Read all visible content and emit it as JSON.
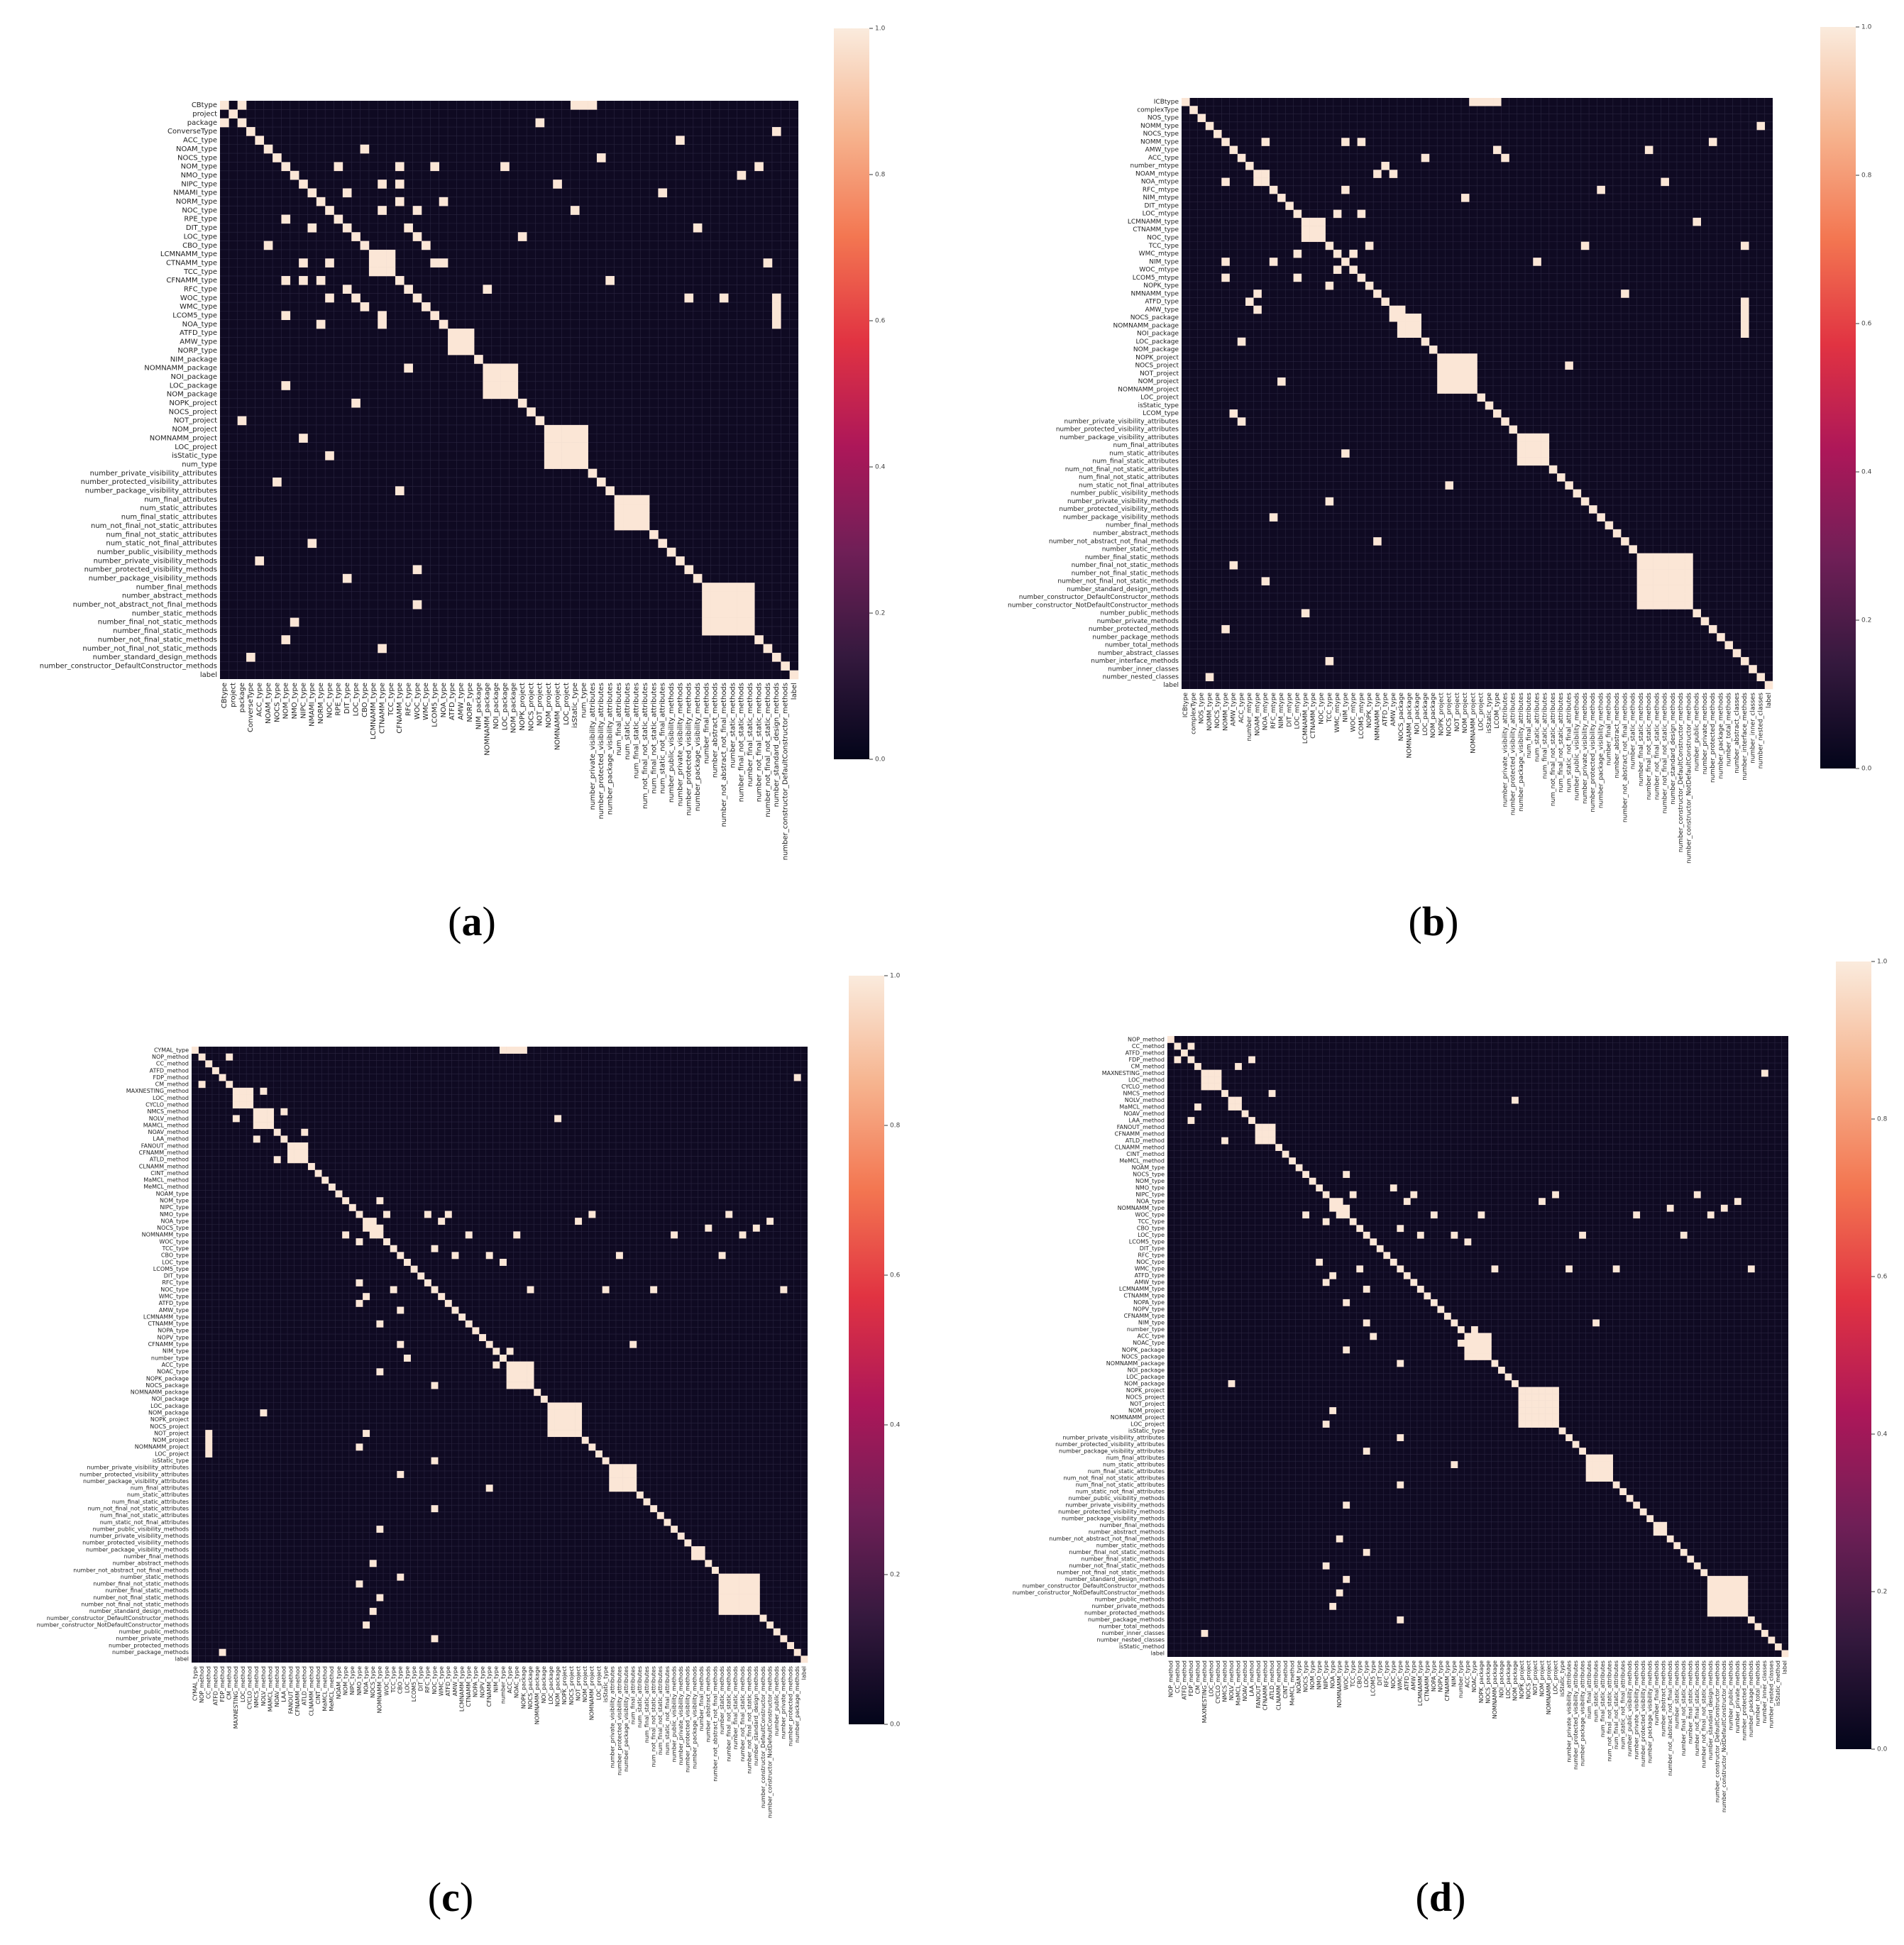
{
  "figure": {
    "colors": {
      "background": "#ffffff",
      "matrix_background": "#0f0a22",
      "cell_border": "#2a2540",
      "high_value": "#fbe6d6"
    }
  },
  "colorbar": {
    "colormap": "rocket",
    "stops": [
      "#03051a",
      "#35193e",
      "#701f57",
      "#ad1759",
      "#e13342",
      "#f37651",
      "#f6b48f",
      "#faebdd"
    ]
  },
  "chart_data": [
    {
      "panel": "a",
      "type": "heatmap",
      "caption_letter": "a",
      "vmin": 0,
      "vmax": 1,
      "colorbar_ticks": [
        "0.0",
        "0.2",
        "0.4",
        "0.6",
        "0.8",
        "1.0"
      ],
      "n_features": 66,
      "features": [
        "CBtype",
        "project",
        "package",
        "ConverseType",
        "ACC_type",
        "NOAM_type",
        "NOCS_type",
        "NOM_type",
        "NMO_type",
        "NIPC_type",
        "NMAMI_type",
        "NORM_type",
        "NOC_type",
        "RPE_type",
        "DIT_type",
        "LOC_type",
        "CBO_type",
        "LCMNAMM_type",
        "CTNAMM_type",
        "TCC_type",
        "CFNAMM_type",
        "RFC_type",
        "WOC_type",
        "WMC_type",
        "LCOM5_type",
        "NOA_type",
        "ATFD_type",
        "AMW_type",
        "NORP_type",
        "NIM_package",
        "NOMNAMM_package",
        "NOI_package",
        "LOC_package",
        "NOM_package",
        "NOPK_project",
        "NOCS_project",
        "NOT_project",
        "NOM_project",
        "NOMNAMM_project",
        "LOC_project",
        "isStatic_type",
        "num_type",
        "number_private_visibility_attributes",
        "number_protected_visibility_attributes",
        "number_package_visibility_attributes",
        "num_final_attributes",
        "num_static_attributes",
        "num_final_static_attributes",
        "num_not_final_not_static_attributes",
        "num_final_not_static_attributes",
        "num_static_not_final_attributes",
        "number_public_visibility_methods",
        "number_private_visibility_methods",
        "number_protected_visibility_methods",
        "number_package_visibility_methods",
        "number_final_methods",
        "number_abstract_methods",
        "number_not_abstract_not_final_methods",
        "number_static_methods",
        "number_final_not_static_methods",
        "number_final_static_methods",
        "number_not_final_static_methods",
        "number_not_final_not_static_methods",
        "number_standard_design_methods",
        "number_constructor_DefaultConstructor_methods",
        "label"
      ],
      "blocks": [
        [
          17,
          19
        ],
        [
          26,
          28
        ],
        [
          30,
          33
        ],
        [
          37,
          41
        ],
        [
          45,
          48
        ],
        [
          55,
          60
        ]
      ],
      "pairs": [
        [
          2,
          0
        ],
        [
          7,
          13
        ],
        [
          7,
          20
        ],
        [
          7,
          24
        ],
        [
          9,
          18
        ],
        [
          10,
          14
        ],
        [
          11,
          20
        ],
        [
          11,
          25
        ],
        [
          12,
          18
        ],
        [
          14,
          21
        ],
        [
          15,
          22
        ],
        [
          16,
          5
        ],
        [
          18,
          24
        ],
        [
          20,
          9
        ],
        [
          21,
          30
        ],
        [
          22,
          12
        ],
        [
          23,
          16
        ],
        [
          25,
          18
        ],
        [
          32,
          7
        ],
        [
          34,
          15
        ],
        [
          36,
          2
        ],
        [
          38,
          9
        ],
        [
          40,
          12
        ],
        [
          43,
          6
        ],
        [
          44,
          20
        ],
        [
          50,
          10
        ],
        [
          52,
          4
        ],
        [
          53,
          22
        ],
        [
          54,
          14
        ],
        [
          57,
          22
        ],
        [
          59,
          8
        ],
        [
          61,
          7
        ],
        [
          62,
          18
        ],
        [
          63,
          3
        ]
      ],
      "row_bands": [
        [
          0,
          40,
          42
        ]
      ],
      "col_bands": [
        [
          63,
          22,
          25
        ]
      ]
    },
    {
      "panel": "b",
      "type": "heatmap",
      "caption_letter": "b",
      "vmin": 0,
      "vmax": 1,
      "colorbar_ticks": [
        "0.0",
        "0.2",
        "0.4",
        "0.6",
        "0.8",
        "1.0"
      ],
      "n_features": 74,
      "features": [
        "ICBtype",
        "complexType",
        "NOS_type",
        "NOMM_type",
        "NOCS_type",
        "NOMM_type",
        "AMW_type",
        "ACC_type",
        "number_mtype",
        "NOAM_mtype",
        "NOA_mtype",
        "RFC_mtype",
        "NIM_mtype",
        "DIT_mtype",
        "LOC_mtype",
        "LCMNAMM_type",
        "CTNAMM_type",
        "NOC_type",
        "TCC_type",
        "WMC_mtype",
        "NIM_type",
        "WOC_mtype",
        "LCOM5_mtype",
        "NOPK_type",
        "NMNAMM_type",
        "ATFD_type",
        "AMW_type",
        "NOCS_package",
        "NOMNAMM_package",
        "NOI_package",
        "LOC_package",
        "NOM_package",
        "NOPK_project",
        "NOCS_project",
        "NOT_project",
        "NOM_project",
        "NOMNAMM_project",
        "LOC_project",
        "isStatic_type",
        "LCOM_type",
        "number_private_visibility_attributes",
        "number_protected_visibility_attributes",
        "number_package_visibility_attributes",
        "num_final_attributes",
        "num_static_attributes",
        "num_final_static_attributes",
        "num_not_final_not_static_attributes",
        "num_final_not_static_attributes",
        "num_static_not_final_attributes",
        "number_public_visibility_methods",
        "number_private_visibility_methods",
        "number_protected_visibility_methods",
        "number_package_visibility_methods",
        "number_final_methods",
        "number_abstract_methods",
        "number_not_abstract_not_final_methods",
        "number_static_methods",
        "number_final_static_methods",
        "number_final_not_static_methods",
        "number_not_final_static_methods",
        "number_not_final_not_static_methods",
        "number_standard_design_methods",
        "number_constructor_DefaultConstructor_methods",
        "number_constructor_NotDefaultConstructor_methods",
        "number_public_methods",
        "number_private_methods",
        "number_protected_methods",
        "number_package_methods",
        "number_total_methods",
        "number_abstract_classes",
        "number_interface_methods",
        "number_inner_classes",
        "number_nested_classes",
        "label"
      ],
      "blocks": [
        [
          15,
          17
        ],
        [
          27,
          29
        ],
        [
          32,
          36
        ],
        [
          42,
          45
        ],
        [
          57,
          63
        ]
      ],
      "pairs": [
        [
          5,
          10
        ],
        [
          5,
          22
        ],
        [
          6,
          39
        ],
        [
          7,
          30
        ],
        [
          9,
          26
        ],
        [
          10,
          9
        ],
        [
          11,
          20
        ],
        [
          12,
          35
        ],
        [
          14,
          19
        ],
        [
          18,
          50
        ],
        [
          19,
          21
        ],
        [
          20,
          5
        ],
        [
          21,
          19
        ],
        [
          22,
          14
        ],
        [
          23,
          18
        ],
        [
          24,
          9
        ],
        [
          25,
          8
        ],
        [
          27,
          26
        ],
        [
          40,
          7
        ],
        [
          44,
          20
        ],
        [
          48,
          33
        ],
        [
          52,
          11
        ],
        [
          55,
          24
        ],
        [
          58,
          6
        ],
        [
          60,
          10
        ],
        [
          64,
          15
        ],
        [
          66,
          5
        ],
        [
          70,
          18
        ],
        [
          72,
          3
        ]
      ],
      "row_bands": [
        [
          0,
          36,
          39
        ]
      ],
      "col_bands": [
        [
          70,
          25,
          29
        ]
      ]
    },
    {
      "panel": "c",
      "type": "heatmap",
      "caption_letter": "c",
      "vmin": 0,
      "vmax": 1,
      "colorbar_ticks": [
        "0.0",
        "0.2",
        "0.4",
        "0.6",
        "0.8",
        "1.0"
      ],
      "n_features": 90,
      "features": [
        "CYMAL_type",
        "NOP_method",
        "CC_method",
        "ATFD_method",
        "FDP_method",
        "CM_method",
        "MAXNESTING_method",
        "LOC_method",
        "CYCLO_method",
        "NMCS_method",
        "NOLV_method",
        "MAMCL_method",
        "NOAV_method",
        "LAA_method",
        "FANOUT_method",
        "CFNAMM_method",
        "ATLD_method",
        "CLNAMM_method",
        "CINT_method",
        "MaMCL_method",
        "MeMCL_method",
        "NOAM_type",
        "NOM_type",
        "NIPC_type",
        "NMO_type",
        "NOA_type",
        "NOCS_type",
        "NOMNAMM_type",
        "WOC_type",
        "TCC_type",
        "CBO_type",
        "LOC_type",
        "LCOM5_type",
        "DIT_type",
        "RFC_type",
        "NOC_type",
        "WMC_type",
        "ATFD_type",
        "AMW_type",
        "LCMNAMM_type",
        "CTNAMM_type",
        "NOPA_type",
        "NOPV_type",
        "CFNAMM_type",
        "NIM_type",
        "number_type",
        "ACC_type",
        "NOAC_type",
        "NOPK_package",
        "NOCS_package",
        "NOMNAMM_package",
        "NOI_package",
        "LOC_package",
        "NOM_package",
        "NOPK_project",
        "NOCS_project",
        "NOT_project",
        "NOM_project",
        "NOMNAMM_project",
        "LOC_project",
        "isStatic_type",
        "number_private_visibility_attributes",
        "number_protected_visibility_attributes",
        "number_package_visibility_attributes",
        "num_final_attributes",
        "num_static_attributes",
        "num_final_static_attributes",
        "num_not_final_not_static_attributes",
        "num_final_not_static_attributes",
        "num_static_not_final_attributes",
        "number_public_visibility_methods",
        "number_private_visibility_methods",
        "number_protected_visibility_methods",
        "number_package_visibility_methods",
        "number_final_methods",
        "number_abstract_methods",
        "number_not_abstract_not_final_methods",
        "number_static_methods",
        "number_final_not_static_methods",
        "number_final_static_methods",
        "number_not_final_static_methods",
        "number_not_final_not_static_methods",
        "number_standard_design_methods",
        "number_constructor_DefaultConstructor_methods",
        "number_constructor_NotDefaultConstructor_methods",
        "number_public_methods",
        "number_private_methods",
        "number_protected_methods",
        "number_package_methods",
        "label"
      ],
      "blocks": [
        [
          6,
          8
        ],
        [
          9,
          11
        ],
        [
          14,
          16
        ],
        [
          46,
          49
        ],
        [
          52,
          56
        ],
        [
          61,
          64
        ],
        [
          77,
          82
        ]
      ],
      "pairs": [
        [
          5,
          1
        ],
        [
          10,
          6
        ],
        [
          12,
          16
        ],
        [
          13,
          9
        ],
        [
          22,
          27
        ],
        [
          24,
          34
        ],
        [
          25,
          26
        ],
        [
          26,
          27
        ],
        [
          28,
          24
        ],
        [
          29,
          35
        ],
        [
          30,
          43
        ],
        [
          31,
          45
        ],
        [
          35,
          49
        ],
        [
          36,
          25
        ],
        [
          37,
          24
        ],
        [
          38,
          30
        ],
        [
          40,
          27
        ],
        [
          44,
          46
        ],
        [
          47,
          27
        ],
        [
          53,
          10
        ],
        [
          56,
          25
        ],
        [
          58,
          24
        ],
        [
          60,
          35
        ],
        [
          62,
          30
        ],
        [
          64,
          43
        ],
        [
          67,
          35
        ],
        [
          70,
          27
        ],
        [
          73,
          74
        ],
        [
          75,
          26
        ],
        [
          77,
          30
        ],
        [
          78,
          24
        ],
        [
          80,
          27
        ],
        [
          82,
          26
        ],
        [
          84,
          25
        ],
        [
          86,
          35
        ],
        [
          88,
          4
        ]
      ],
      "row_bands": [
        [
          0,
          45,
          48
        ]
      ],
      "col_bands": [
        [
          2,
          56,
          59
        ]
      ]
    },
    {
      "panel": "d",
      "type": "heatmap",
      "caption_letter": "d",
      "vmin": 0,
      "vmax": 1,
      "colorbar_ticks": [
        "0.0",
        "0.2",
        "0.4",
        "0.6",
        "0.8",
        "1.0"
      ],
      "n_features": 92,
      "features": [
        "NOP_method",
        "CC_method",
        "ATFD_method",
        "FDP_method",
        "CM_method",
        "MAXNESTING_method",
        "LOC_method",
        "CYCLO_method",
        "NMCS_method",
        "NOLV_method",
        "MaMCL_method",
        "NOAV_method",
        "LAA_method",
        "FANOUT_method",
        "CFNAMM_method",
        "ATLD_method",
        "CLNAMM_method",
        "CINT_method",
        "MeMCL_method",
        "NOAM_type",
        "NOCS_type",
        "NOM_type",
        "NMO_type",
        "NIPC_type",
        "NOA_type",
        "NOMNAMM_type",
        "WOC_type",
        "TCC_type",
        "CBO_type",
        "LOC_type",
        "LCOM5_type",
        "DIT_type",
        "RFC_type",
        "NOC_type",
        "WMC_type",
        "ATFD_type",
        "AMW_type",
        "LCMNAMM_type",
        "CTNAMM_type",
        "NOPA_type",
        "NOPV_type",
        "CFNAMM_type",
        "NIM_type",
        "number_type",
        "ACC_type",
        "NOAC_type",
        "NOPK_package",
        "NOCS_package",
        "NOMNAMM_package",
        "NOI_package",
        "LOC_package",
        "NOM_package",
        "NOPK_project",
        "NOCS_project",
        "NOT_project",
        "NOM_project",
        "NOMNAMM_project",
        "LOC_project",
        "isStatic_type",
        "number_private_visibility_attributes",
        "number_protected_visibility_attributes",
        "number_package_visibility_attributes",
        "num_final_attributes",
        "num_static_attributes",
        "num_final_static_attributes",
        "num_not_final_not_static_attributes",
        "num_final_not_static_attributes",
        "num_static_not_final_attributes",
        "number_public_visibility_methods",
        "number_private_visibility_methods",
        "number_protected_visibility_methods",
        "number_package_visibility_methods",
        "number_final_methods",
        "number_abstract_methods",
        "number_not_abstract_not_final_methods",
        "number_static_methods",
        "number_final_not_static_methods",
        "number_final_static_methods",
        "number_not_final_static_methods",
        "number_not_final_not_static_methods",
        "number_standard_design_methods",
        "number_constructor_DefaultConstructor_methods",
        "number_constructor_NotDefaultConstructor_methods",
        "number_public_methods",
        "number_private_methods",
        "number_protected_methods",
        "number_package_methods",
        "number_total_methods",
        "number_inner_classes",
        "number_nested_classes",
        "isStatic_method",
        "label"
      ],
      "blocks": [
        [
          5,
          7
        ],
        [
          9,
          10
        ],
        [
          13,
          15
        ],
        [
          44,
          47
        ],
        [
          52,
          57
        ],
        [
          62,
          65
        ],
        [
          80,
          85
        ]
      ],
      "pairs": [
        [
          3,
          1
        ],
        [
          4,
          10
        ],
        [
          8,
          15
        ],
        [
          12,
          3
        ],
        [
          20,
          26
        ],
        [
          22,
          33
        ],
        [
          24,
          25
        ],
        [
          25,
          26
        ],
        [
          27,
          23
        ],
        [
          28,
          34
        ],
        [
          29,
          42
        ],
        [
          30,
          44
        ],
        [
          34,
          48
        ],
        [
          35,
          24
        ],
        [
          36,
          23
        ],
        [
          37,
          29
        ],
        [
          39,
          26
        ],
        [
          43,
          45
        ],
        [
          46,
          26
        ],
        [
          51,
          9
        ],
        [
          55,
          24
        ],
        [
          57,
          23
        ],
        [
          59,
          34
        ],
        [
          61,
          29
        ],
        [
          63,
          42
        ],
        [
          66,
          34
        ],
        [
          69,
          26
        ],
        [
          72,
          73
        ],
        [
          74,
          25
        ],
        [
          76,
          29
        ],
        [
          78,
          23
        ],
        [
          80,
          26
        ],
        [
          82,
          25
        ],
        [
          84,
          24
        ],
        [
          86,
          34
        ],
        [
          88,
          5
        ]
      ],
      "row_bands": [],
      "col_bands": []
    }
  ]
}
